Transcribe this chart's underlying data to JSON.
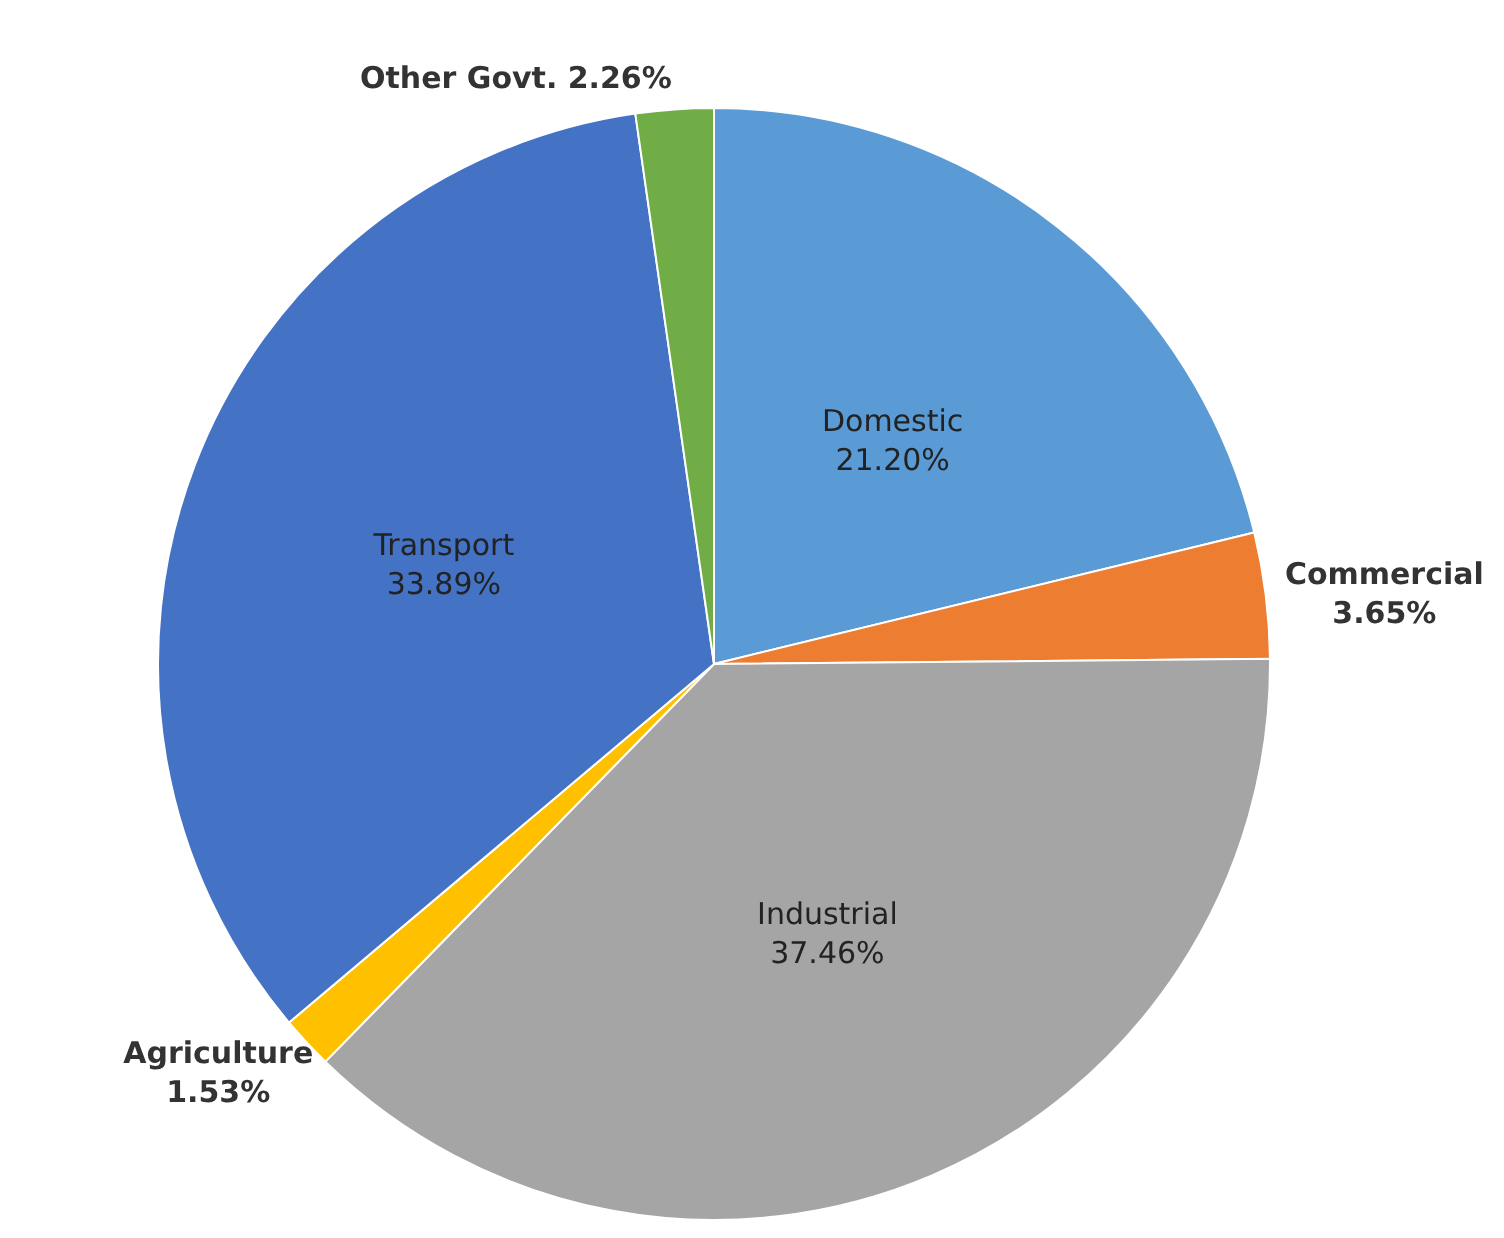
{
  "chart_data": {
    "type": "pie",
    "categories": [
      "Domestic",
      "Commercial",
      "Industrial",
      "Agriculture",
      "Transport",
      "Other Govt."
    ],
    "values": [
      21.2,
      3.65,
      37.46,
      1.53,
      33.89,
      2.26
    ],
    "value_labels": [
      "21.20%",
      "3.65%",
      "37.46%",
      "1.53%",
      "33.89%",
      "2.26%"
    ],
    "colors": [
      "#5b9bd5",
      "#ed7d31",
      "#a5a5a5",
      "#ffc000",
      "#4472c4",
      "#70ad47"
    ]
  }
}
